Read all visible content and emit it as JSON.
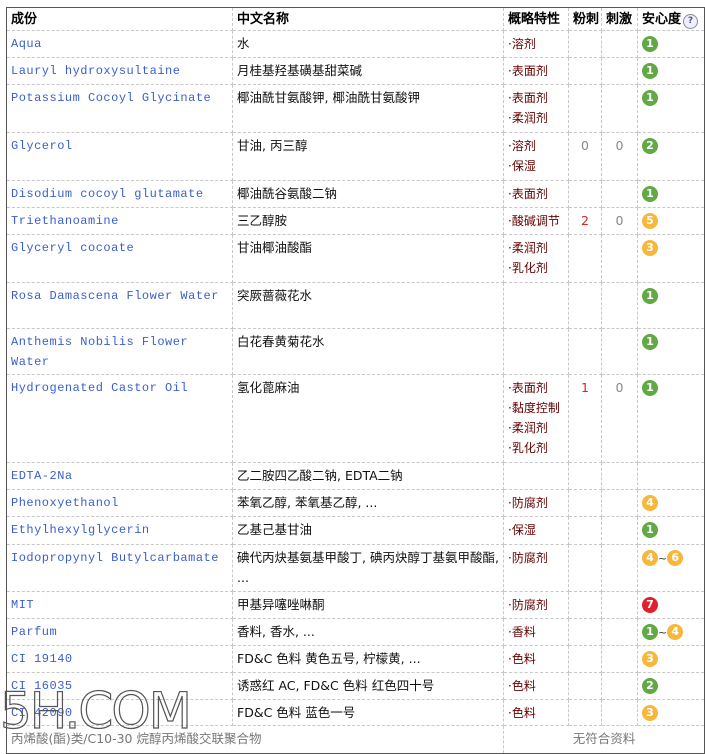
{
  "header": {
    "ingredient": "成份",
    "chinese": "中文名称",
    "features": "概略特性",
    "acne": "粉刺",
    "irritation": "刺激",
    "safety": "安心度",
    "help_icon": "?"
  },
  "colors": {
    "green": "#62a844",
    "orange": "#f6b73c",
    "red": "#e0202a"
  },
  "rows": [
    {
      "en": "Aqua",
      "cn": "水",
      "features": [
        "·溶剂"
      ],
      "acne": "",
      "irr": "",
      "safety": [
        {
          "v": "1",
          "c": "green"
        }
      ]
    },
    {
      "en": "Lauryl hydroxysultaine",
      "cn": "月桂基羟基磺基甜菜碱",
      "features": [
        "·表面剂"
      ],
      "acne": "",
      "irr": "",
      "safety": [
        {
          "v": "1",
          "c": "green"
        }
      ]
    },
    {
      "en": "Potassium Cocoyl Glycinate",
      "cn": "椰油酰甘氨酸钾, 椰油酰甘氨酸钾",
      "features": [
        "·表面剂",
        "·柔润剂"
      ],
      "acne": "",
      "irr": "",
      "safety": [
        {
          "v": "1",
          "c": "green"
        }
      ]
    },
    {
      "en": "Glycerol",
      "cn": "甘油, 丙三醇",
      "features": [
        "·溶剂",
        "·保湿"
      ],
      "acne": "0",
      "irr": "0",
      "safety": [
        {
          "v": "2",
          "c": "green"
        }
      ]
    },
    {
      "en": "Disodium cocoyl glutamate",
      "cn": "椰油酰谷氨酸二钠",
      "features": [
        "·表面剂"
      ],
      "acne": "",
      "irr": "",
      "safety": [
        {
          "v": "1",
          "c": "green"
        }
      ]
    },
    {
      "en": "Triethanoamine",
      "cn": "三乙醇胺",
      "features": [
        "·酸碱调节"
      ],
      "acne": "2",
      "irr": "0",
      "safety": [
        {
          "v": "5",
          "c": "orange"
        }
      ]
    },
    {
      "en": "Glyceryl cocoate",
      "cn": "甘油椰油酸酯",
      "features": [
        "·柔润剂",
        "·乳化剂"
      ],
      "acne": "",
      "irr": "",
      "safety": [
        {
          "v": "3",
          "c": "orange"
        }
      ]
    },
    {
      "en": "Rosa Damascena Flower Water",
      "cn": "突厥蔷薇花水",
      "features": [],
      "acne": "",
      "irr": "",
      "safety": [
        {
          "v": "1",
          "c": "green"
        }
      ]
    },
    {
      "en": "Anthemis Nobilis Flower Water",
      "cn": "白花春黄菊花水",
      "features": [],
      "acne": "",
      "irr": "",
      "safety": [
        {
          "v": "1",
          "c": "green"
        }
      ]
    },
    {
      "en": "Hydrogenated Castor Oil",
      "cn": "氢化蓖麻油",
      "features": [
        "·表面剂",
        "·黏度控制",
        "·柔润剂",
        "·乳化剂"
      ],
      "acne": "1",
      "irr": "0",
      "safety": [
        {
          "v": "1",
          "c": "green"
        }
      ]
    },
    {
      "en": "EDTA-2Na",
      "cn": "乙二胺四乙酸二钠, EDTA二钠",
      "features": [],
      "acne": "",
      "irr": "",
      "safety": []
    },
    {
      "en": "Phenoxyethanol",
      "cn": "苯氧乙醇, 苯氧基乙醇, ...",
      "features": [
        "·防腐剂"
      ],
      "acne": "",
      "irr": "",
      "safety": [
        {
          "v": "4",
          "c": "orange"
        }
      ]
    },
    {
      "en": "Ethylhexylglycerin",
      "cn": "乙基己基甘油",
      "features": [
        "·保湿"
      ],
      "acne": "",
      "irr": "",
      "safety": [
        {
          "v": "1",
          "c": "green"
        }
      ]
    },
    {
      "en": "Iodopropynyl Butylcarbamate",
      "cn": "碘代丙炔基氨基甲酸丁, 碘丙炔醇丁基氨甲酸酯, ...",
      "features": [
        "·防腐剂"
      ],
      "acne": "",
      "irr": "",
      "safety": [
        {
          "v": "4",
          "c": "orange"
        },
        {
          "v": "6",
          "c": "orange"
        }
      ]
    },
    {
      "en": "MIT",
      "cn": "甲基异噻唑啉酮",
      "features": [
        "·防腐剂"
      ],
      "acne": "",
      "irr": "",
      "safety": [
        {
          "v": "7",
          "c": "red"
        }
      ]
    },
    {
      "en": "Parfum",
      "cn": "香料, 香水, ...",
      "features": [
        "·香料"
      ],
      "acne": "",
      "irr": "",
      "safety": [
        {
          "v": "1",
          "c": "green"
        },
        {
          "v": "4",
          "c": "orange"
        }
      ]
    },
    {
      "en": "CI 19140",
      "cn": "FD&C 色料 黄色五号, 柠檬黄, ...",
      "features": [
        "·色料"
      ],
      "acne": "",
      "irr": "",
      "safety": [
        {
          "v": "3",
          "c": "orange"
        }
      ]
    },
    {
      "en": "CI 16035",
      "cn": "诱惑红 AC, FD&C 色料 红色四十号",
      "features": [
        "·色料"
      ],
      "acne": "",
      "irr": "",
      "safety": [
        {
          "v": "2",
          "c": "green"
        }
      ]
    },
    {
      "en": "CI 42090",
      "cn": "FD&C 色料 蓝色一号",
      "features": [
        "·色料"
      ],
      "acne": "",
      "irr": "",
      "safety": [
        {
          "v": "3",
          "c": "orange"
        }
      ]
    }
  ],
  "last_row": {
    "name": "丙烯酸(酯)类/C10-30 烷醇丙烯酸交联聚合物",
    "note": "无符合资料"
  },
  "watermark": "5H.COM"
}
